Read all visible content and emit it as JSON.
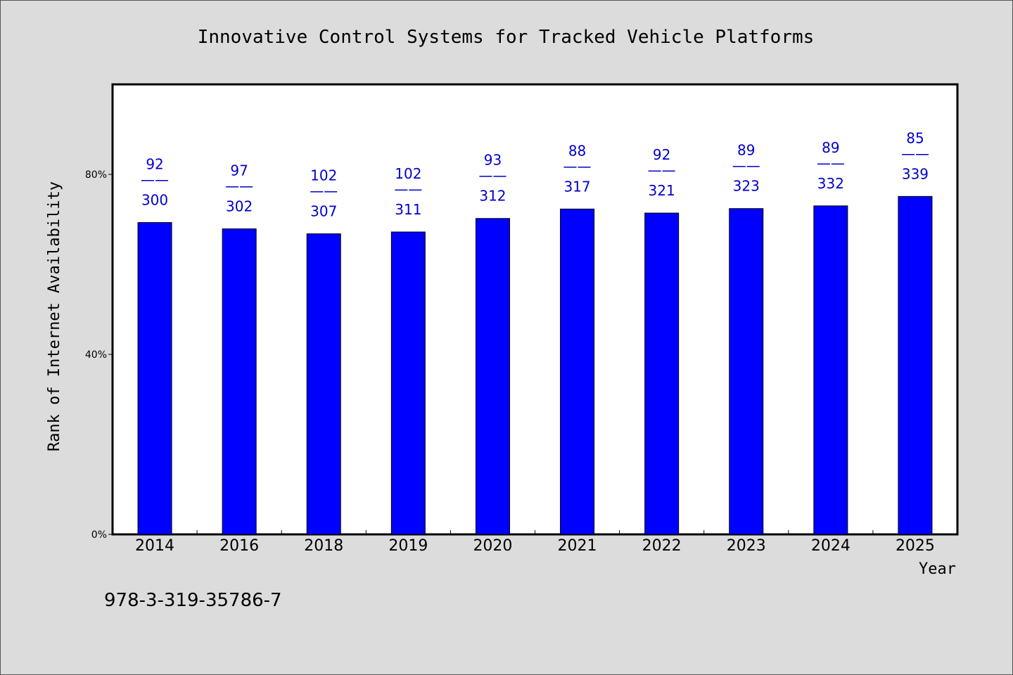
{
  "chart_data": {
    "type": "bar",
    "title": "Innovative Control Systems for Tracked Vehicle Platforms",
    "xlabel": "Year",
    "ylabel": "Rank of Internet Availability",
    "ylim": [
      0,
      100
    ],
    "yticks": [
      {
        "value": 0,
        "label": "0%"
      },
      {
        "value": 40,
        "label": "40%"
      },
      {
        "value": 80,
        "label": "80%"
      }
    ],
    "categories": [
      "2014",
      "2016",
      "2018",
      "2019",
      "2020",
      "2021",
      "2022",
      "2023",
      "2024",
      "2025"
    ],
    "values": [
      69.3,
      67.9,
      66.8,
      67.2,
      70.2,
      72.3,
      71.4,
      72.4,
      73.0,
      75.1
    ],
    "rank_labels": [
      "92",
      "97",
      "102",
      "102",
      "93",
      "88",
      "92",
      "89",
      "89",
      "85"
    ],
    "total_labels": [
      "300",
      "302",
      "307",
      "311",
      "312",
      "317",
      "321",
      "323",
      "332",
      "339"
    ],
    "separator": "——",
    "grid": false,
    "bar_color": "#0000ff",
    "label_color": "#0000cc"
  },
  "footer": {
    "isbn": "978-3-319-35786-7"
  }
}
